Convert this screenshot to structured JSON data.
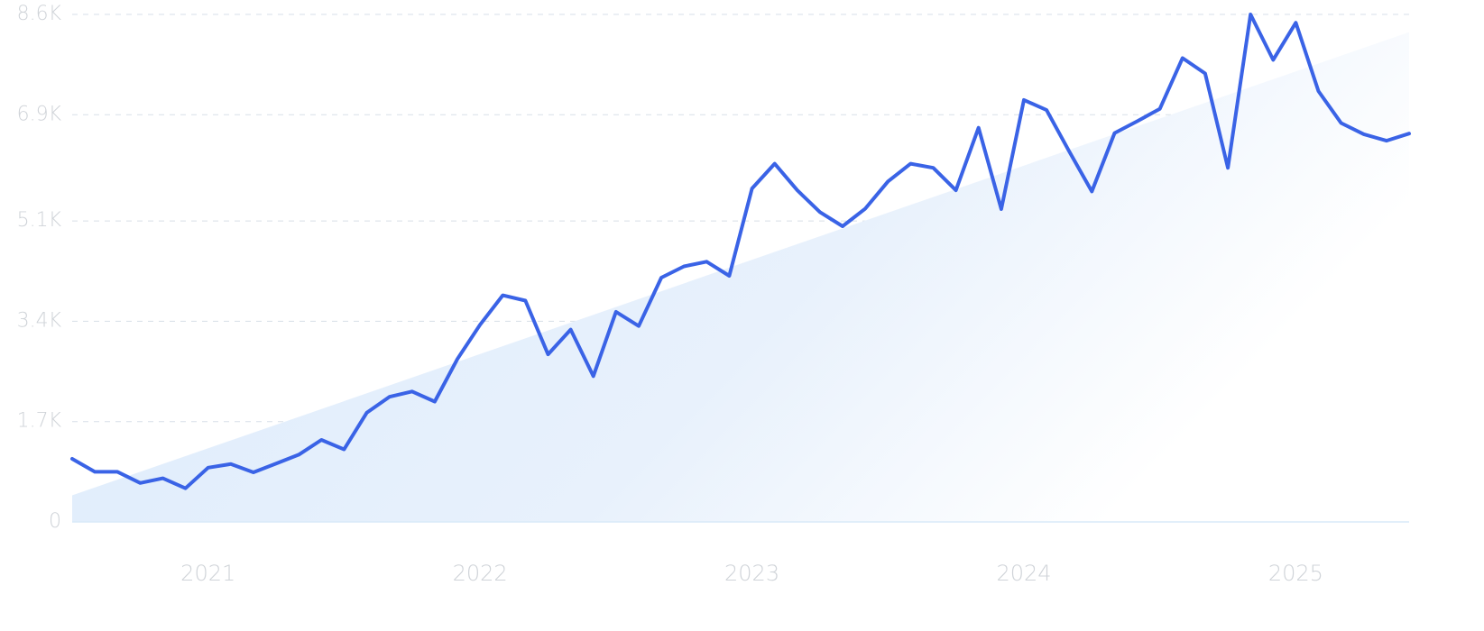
{
  "chart_data": {
    "type": "line",
    "title": "",
    "xlabel": "",
    "ylabel": "",
    "x_range": [
      "2020-07",
      "2025-06"
    ],
    "ylim": [
      0,
      8600
    ],
    "grid": true,
    "y_ticks": [
      {
        "value": 0,
        "label": "0"
      },
      {
        "value": 1700,
        "label": "1.7K"
      },
      {
        "value": 3400,
        "label": "3.4K"
      },
      {
        "value": 5100,
        "label": "5.1K"
      },
      {
        "value": 6900,
        "label": "6.9K"
      },
      {
        "value": 8600,
        "label": "8.6K"
      }
    ],
    "x_ticks": [
      {
        "value": "2021-01",
        "label": "2021"
      },
      {
        "value": "2022-01",
        "label": "2022"
      },
      {
        "value": "2023-01",
        "label": "2023"
      },
      {
        "value": "2024-01",
        "label": "2024"
      },
      {
        "value": "2025-01",
        "label": "2025"
      }
    ],
    "colors": {
      "line": "#3a63e6",
      "trend_fill": "#dcebfb",
      "grid": "#d7dfe8",
      "baseline": "#d9eaf8",
      "tick_text": "#cfd3d8"
    },
    "trend": {
      "x": [
        "2020-07",
        "2025-06"
      ],
      "y": [
        450,
        8300
      ]
    },
    "series": [
      {
        "x": [
          "2020-07",
          "2020-08",
          "2020-09",
          "2020-10",
          "2020-11",
          "2020-12",
          "2021-01",
          "2021-02",
          "2021-03",
          "2021-04",
          "2021-05",
          "2021-06",
          "2021-07",
          "2021-08",
          "2021-09",
          "2021-10",
          "2021-11",
          "2021-12",
          "2022-01",
          "2022-02",
          "2022-03",
          "2022-04",
          "2022-05",
          "2022-06",
          "2022-07",
          "2022-08",
          "2022-09",
          "2022-10",
          "2022-11",
          "2022-12",
          "2023-01",
          "2023-02",
          "2023-03",
          "2023-04",
          "2023-05",
          "2023-06",
          "2023-07",
          "2023-08",
          "2023-09",
          "2023-10",
          "2023-11",
          "2023-12",
          "2024-01",
          "2024-02",
          "2024-03",
          "2024-04",
          "2024-05",
          "2024-06",
          "2024-07",
          "2024-08",
          "2024-09",
          "2024-10",
          "2024-11",
          "2024-12",
          "2025-01",
          "2025-02",
          "2025-03",
          "2025-04",
          "2025-05",
          "2025-06"
        ],
        "values": [
          1070,
          850,
          850,
          660,
          740,
          570,
          920,
          980,
          840,
          990,
          1140,
          1390,
          1230,
          1850,
          2120,
          2210,
          2040,
          2760,
          3340,
          3840,
          3750,
          2840,
          3260,
          2470,
          3560,
          3320,
          4140,
          4330,
          4410,
          4170,
          5650,
          6070,
          5620,
          5250,
          5010,
          5310,
          5770,
          6070,
          6000,
          5620,
          6680,
          5300,
          7150,
          6980,
          6280,
          5600,
          6590,
          6790,
          7000,
          7860,
          7600,
          6000,
          8600,
          7830,
          8460,
          7300,
          6760,
          6570,
          6460,
          6580
        ]
      }
    ]
  }
}
